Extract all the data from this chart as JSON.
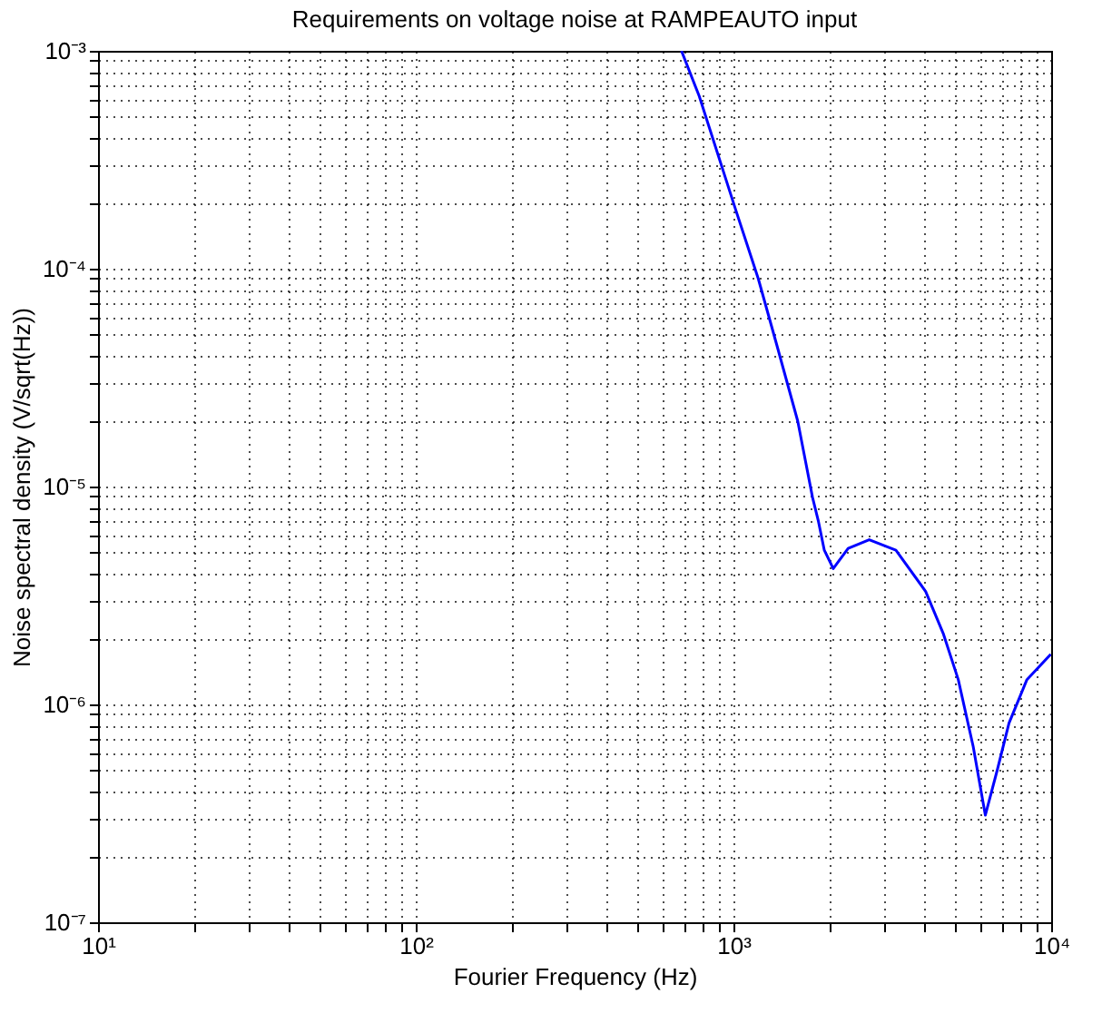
{
  "chart_data": {
    "type": "line",
    "title": "Requirements on voltage noise at RAMPEAUTO input",
    "xlabel": "Fourier Frequency (Hz)",
    "ylabel": "Noise spectral density (V/sqrt(Hz))",
    "log": "xy",
    "grid": true,
    "line_style": "solid",
    "marker": "none",
    "x": [
      686,
      780,
      1012,
      1197,
      1367,
      1593,
      1774,
      1852,
      1932,
      2061,
      2296,
      2675,
      3246,
      4027,
      4583,
      5100,
      5684,
      6205,
      6767,
      7367,
      8390,
      9970
    ],
    "series": [
      {
        "color": "#0000ff",
        "values": [
          0.001,
          0.00062,
          0.00019,
          9e-05,
          4.5e-05,
          2e-05,
          8.9e-06,
          6.9e-06,
          5.1e-06,
          4.2e-06,
          5.2e-06,
          5.7e-06,
          5.1e-06,
          3.3e-06,
          2.1e-06,
          1.3e-06,
          6.4e-07,
          3.1e-07,
          5e-07,
          8.2e-07,
          1.3e-06,
          1.7e-06
        ]
      }
    ],
    "xlim": [
      10,
      10000
    ],
    "ylim": [
      1e-07,
      0.001
    ],
    "xticks": [
      {
        "value": 10,
        "label": "10¹"
      },
      {
        "value": 20,
        "label": null
      },
      {
        "value": 30,
        "label": null
      },
      {
        "value": 40,
        "label": null
      },
      {
        "value": 50,
        "label": null
      },
      {
        "value": 60,
        "label": null
      },
      {
        "value": 70,
        "label": null
      },
      {
        "value": 80,
        "label": null
      },
      {
        "value": 90,
        "label": null
      },
      {
        "value": 100,
        "label": "10²"
      },
      {
        "value": 200,
        "label": null
      },
      {
        "value": 300,
        "label": null
      },
      {
        "value": 400,
        "label": null
      },
      {
        "value": 500,
        "label": null
      },
      {
        "value": 600,
        "label": null
      },
      {
        "value": 700,
        "label": null
      },
      {
        "value": 800,
        "label": null
      },
      {
        "value": 900,
        "label": null
      },
      {
        "value": 1000,
        "label": "10³"
      },
      {
        "value": 2000,
        "label": null
      },
      {
        "value": 3000,
        "label": null
      },
      {
        "value": 4000,
        "label": null
      },
      {
        "value": 5000,
        "label": null
      },
      {
        "value": 6000,
        "label": null
      },
      {
        "value": 7000,
        "label": null
      },
      {
        "value": 8000,
        "label": null
      },
      {
        "value": 9000,
        "label": null
      },
      {
        "value": 10000,
        "label": "10⁴"
      }
    ],
    "yticks": [
      {
        "value": 1e-07,
        "label": "10⁻⁷"
      },
      {
        "value": 2e-07,
        "label": null
      },
      {
        "value": 3e-07,
        "label": null
      },
      {
        "value": 4e-07,
        "label": null
      },
      {
        "value": 5e-07,
        "label": null
      },
      {
        "value": 6e-07,
        "label": null
      },
      {
        "value": 7e-07,
        "label": null
      },
      {
        "value": 8e-07,
        "label": null
      },
      {
        "value": 9e-07,
        "label": null
      },
      {
        "value": 1e-06,
        "label": "10⁻⁶"
      },
      {
        "value": 2e-06,
        "label": null
      },
      {
        "value": 3e-06,
        "label": null
      },
      {
        "value": 4e-06,
        "label": null
      },
      {
        "value": 5e-06,
        "label": null
      },
      {
        "value": 6e-06,
        "label": null
      },
      {
        "value": 7e-06,
        "label": null
      },
      {
        "value": 8e-06,
        "label": null
      },
      {
        "value": 9e-06,
        "label": null
      },
      {
        "value": 1e-05,
        "label": "10⁻⁵"
      },
      {
        "value": 2e-05,
        "label": null
      },
      {
        "value": 3e-05,
        "label": null
      },
      {
        "value": 4e-05,
        "label": null
      },
      {
        "value": 5e-05,
        "label": null
      },
      {
        "value": 6e-05,
        "label": null
      },
      {
        "value": 7e-05,
        "label": null
      },
      {
        "value": 8e-05,
        "label": null
      },
      {
        "value": 9e-05,
        "label": null
      },
      {
        "value": 0.0001,
        "label": "10⁻⁴"
      },
      {
        "value": 0.0002,
        "label": null
      },
      {
        "value": 0.0003,
        "label": null
      },
      {
        "value": 0.0004,
        "label": null
      },
      {
        "value": 0.0005,
        "label": null
      },
      {
        "value": 0.0006,
        "label": null
      },
      {
        "value": 0.0007,
        "label": null
      },
      {
        "value": 0.0008,
        "label": null
      },
      {
        "value": 0.0009,
        "label": null
      },
      {
        "value": 0.001,
        "label": "10⁻³"
      }
    ]
  }
}
